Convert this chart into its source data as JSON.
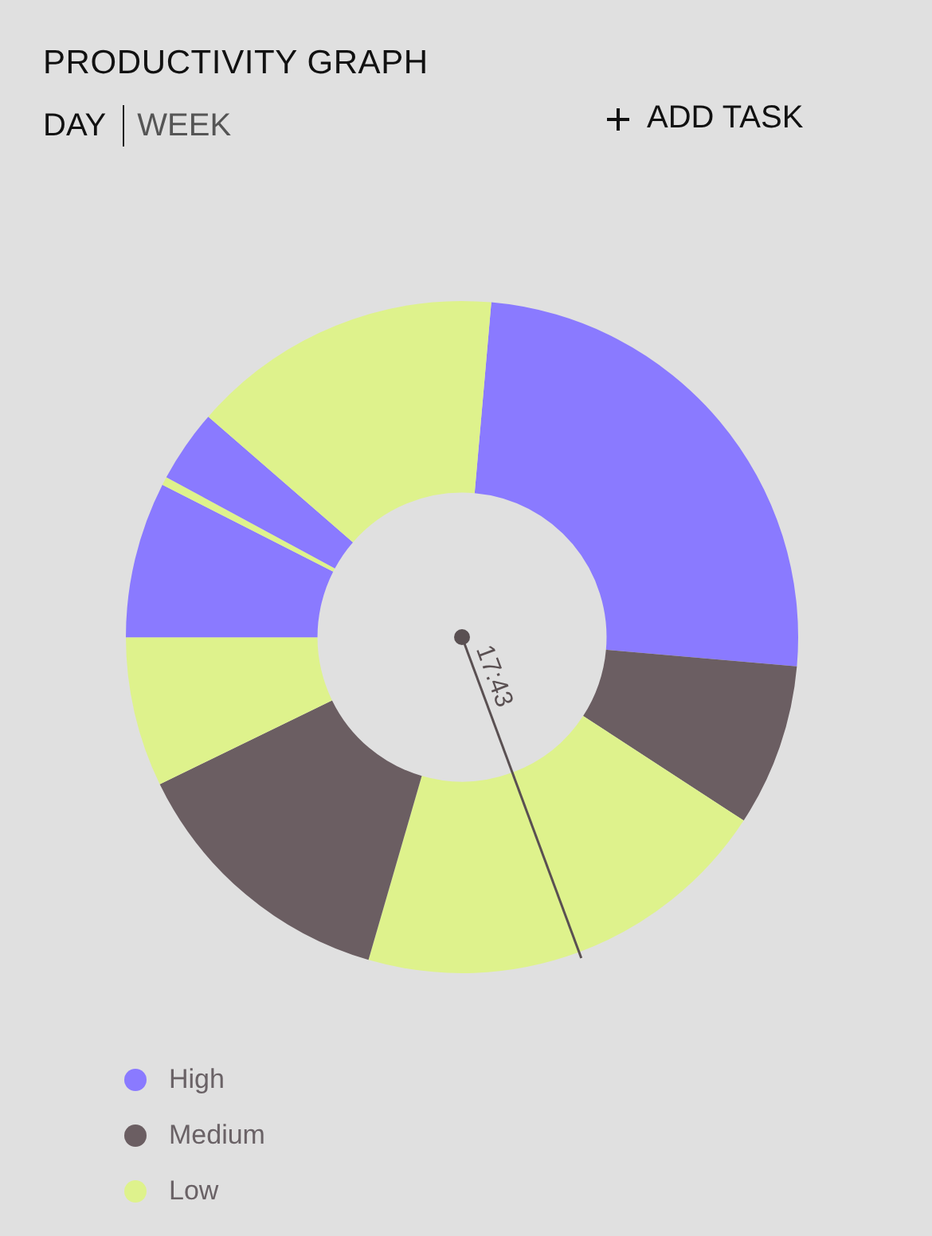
{
  "chart_data": {
    "type": "donut",
    "title": "PRODUCTIVITY GRAPH",
    "categories": [
      "High",
      "Medium",
      "Low",
      null,
      null,
      null,
      null,
      null,
      null
    ],
    "values": [
      25,
      7.8,
      20.3,
      13.3,
      7.2,
      7.5,
      0.4,
      3.5,
      15
    ],
    "colors": [
      "#8a7aff",
      "#6b5e62",
      "#def28c",
      "#6b5e62",
      "#def28c",
      "#8a7aff",
      "#def28c",
      "#8a7aff",
      "#def28c"
    ],
    "needle": "Low",
    "legend": "bottom left",
    "annotations": [
      "17:43",
      "DAY",
      "WEEK",
      "ADD TASK"
    ]
  }
}
